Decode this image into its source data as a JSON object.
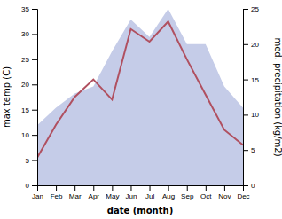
{
  "chart_data": {
    "type": "line",
    "categories": [
      "Jan",
      "Feb",
      "Mar",
      "Apr",
      "May",
      "Jun",
      "Jul",
      "Aug",
      "Sep",
      "Oct",
      "Nov",
      "Dec"
    ],
    "xlabel": "date (month)",
    "ylabel": "max temp (C)",
    "y2label": "med. precipitation (kg/m2)",
    "series": [
      {
        "type": "area",
        "axis": "y2",
        "color": "#c5cce8",
        "values": [
          8.5,
          11.0,
          13.0,
          14.0,
          19.0,
          23.5,
          21.0,
          25.0,
          20.0,
          20.0,
          14.0,
          11.0
        ]
      },
      {
        "type": "line",
        "axis": "y",
        "color": "#b05060",
        "values": [
          5.5,
          12.0,
          17.5,
          21.0,
          17.0,
          31.0,
          28.5,
          32.5,
          25.0,
          18.0,
          11.0,
          8.0
        ]
      }
    ],
    "ylim": [
      0,
      35
    ],
    "yticks": [
      0,
      5,
      10,
      15,
      20,
      25,
      30,
      35
    ],
    "y2lim": [
      0,
      25
    ],
    "y2ticks": [
      0,
      5,
      10,
      15,
      20,
      25
    ]
  }
}
